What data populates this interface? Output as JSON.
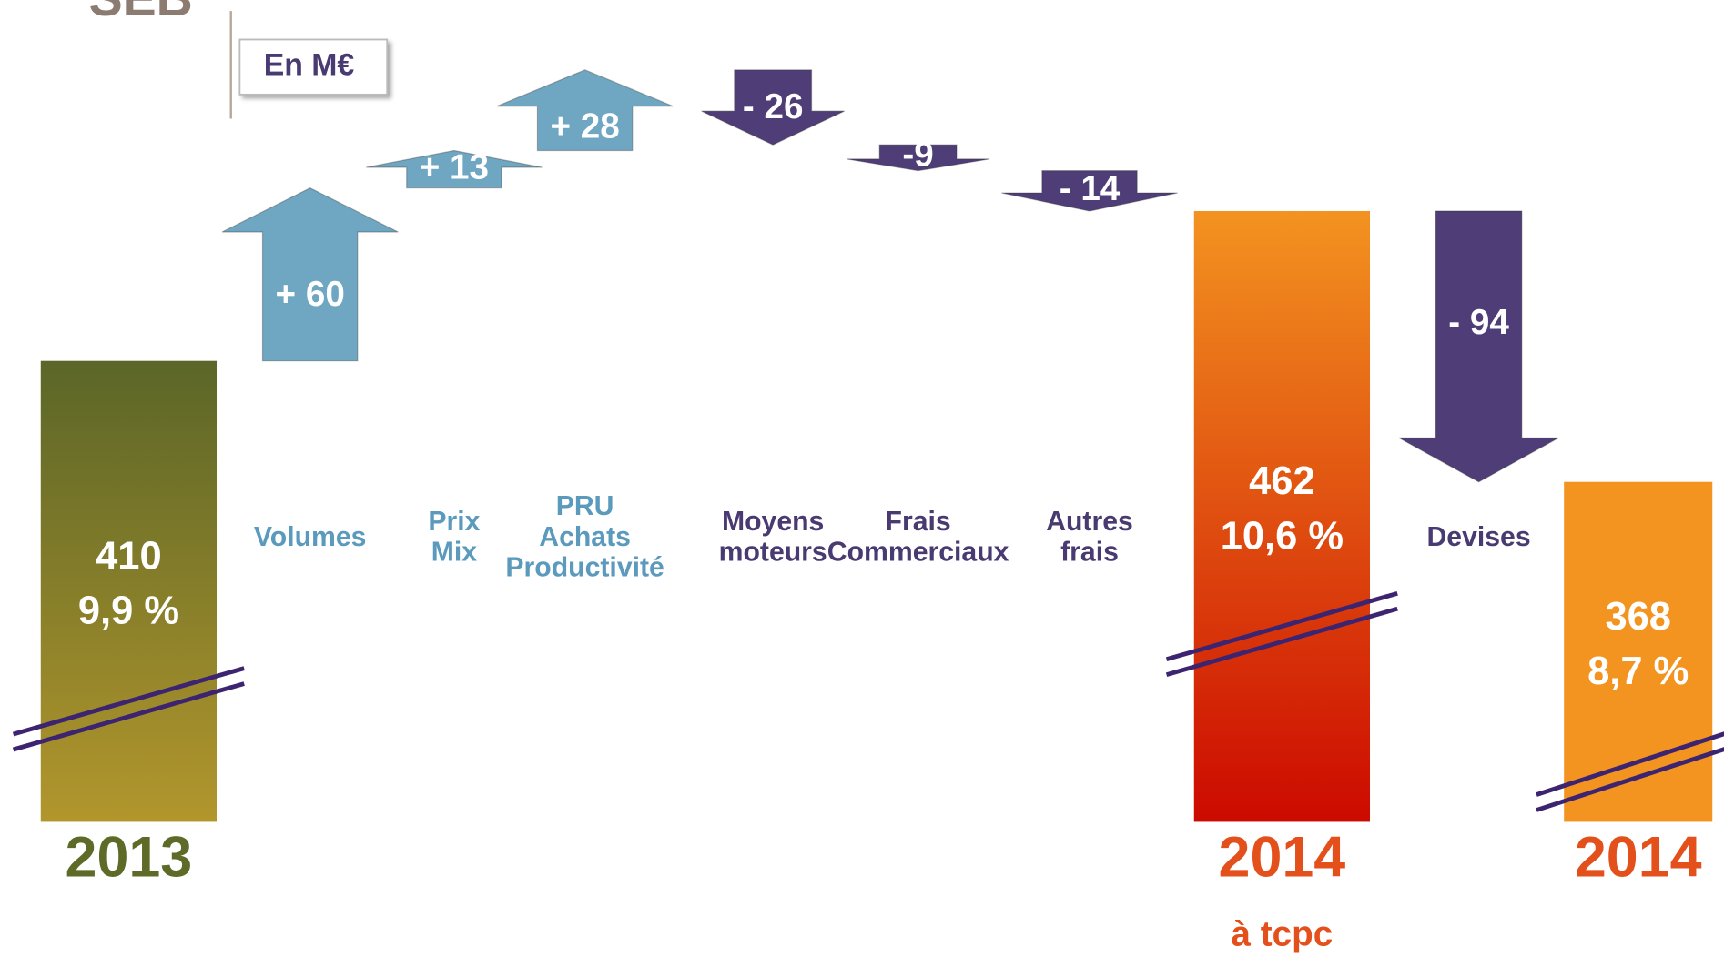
{
  "chart_data": {
    "type": "waterfall",
    "logo": "SEB",
    "unit_label": "En M€",
    "categories": [
      [
        "2013"
      ],
      [
        "Volumes"
      ],
      [
        "Prix",
        "Mix"
      ],
      [
        "PRU",
        "Achats",
        "Productivité"
      ],
      [
        "Moyens",
        "moteurs"
      ],
      [
        "Frais",
        "Commerciaux"
      ],
      [
        "Autres",
        "frais"
      ],
      [
        "2014",
        "à tcpc"
      ],
      [
        "Devises"
      ],
      [
        "2014"
      ]
    ],
    "measure": [
      "absolute",
      "relative",
      "relative",
      "relative",
      "relative",
      "relative",
      "relative",
      "absolute",
      "relative",
      "absolute"
    ],
    "values": [
      410,
      60,
      13,
      28,
      -26,
      -9,
      -14,
      462,
      -94,
      368
    ],
    "value_labels": [
      "410",
      "+ 60",
      "+ 13",
      "+ 28",
      "- 26",
      "-9",
      "- 14",
      "462",
      "- 94",
      "368"
    ],
    "margins": [
      9.9,
      null,
      null,
      null,
      null,
      null,
      null,
      10.6,
      null,
      8.7
    ],
    "margin_labels": [
      "9,9 %",
      null,
      null,
      null,
      null,
      null,
      null,
      "10,6 %",
      null,
      "8,7 %"
    ],
    "colors": [
      "olive",
      "#6fa7c2",
      "#6fa7c2",
      "#6fa7c2",
      "#4f3d78",
      "#4f3d78",
      "#4f3d78",
      "red",
      "#4f3d78",
      "#f39320"
    ],
    "label_colors": [
      "#5e6a28",
      "#5b9abd",
      "#5b9abd",
      "#5b9abd",
      "#4a3a72",
      "#4a3a72",
      "#4a3a72",
      "#e4501c",
      "#4a3a72",
      "#e4501c"
    ],
    "ylim": [
      250,
      520
    ],
    "axis_break": true
  }
}
